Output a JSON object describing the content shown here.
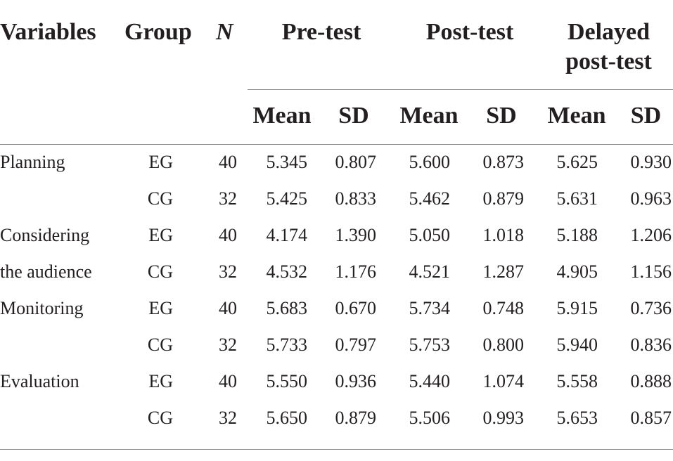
{
  "headers": {
    "variables": "Variables",
    "group": "Group",
    "n": "N",
    "pre_test": "Pre-test",
    "post_test": "Post-test",
    "delayed_line1": "Delayed",
    "delayed_line2": "post-test",
    "mean": "Mean",
    "sd": "SD"
  },
  "rows": [
    {
      "variable": "Planning",
      "group": "EG",
      "n": "40",
      "pre_mean": "5.345",
      "pre_sd": "0.807",
      "post_mean": "5.600",
      "post_sd": "0.873",
      "del_mean": "5.625",
      "del_sd": "0.930"
    },
    {
      "variable": "",
      "group": "CG",
      "n": "32",
      "pre_mean": "5.425",
      "pre_sd": "0.833",
      "post_mean": "5.462",
      "post_sd": "0.879",
      "del_mean": "5.631",
      "del_sd": "0.963"
    },
    {
      "variable": "Considering",
      "group": "EG",
      "n": "40",
      "pre_mean": "4.174",
      "pre_sd": "1.390",
      "post_mean": "5.050",
      "post_sd": "1.018",
      "del_mean": "5.188",
      "del_sd": "1.206"
    },
    {
      "variable": "the audience",
      "group": "CG",
      "n": "32",
      "pre_mean": "4.532",
      "pre_sd": "1.176",
      "post_mean": "4.521",
      "post_sd": "1.287",
      "del_mean": "4.905",
      "del_sd": "1.156"
    },
    {
      "variable": "Monitoring",
      "group": "EG",
      "n": "40",
      "pre_mean": "5.683",
      "pre_sd": "0.670",
      "post_mean": "5.734",
      "post_sd": "0.748",
      "del_mean": "5.915",
      "del_sd": "0.736"
    },
    {
      "variable": "",
      "group": "CG",
      "n": "32",
      "pre_mean": "5.733",
      "pre_sd": "0.797",
      "post_mean": "5.753",
      "post_sd": "0.800",
      "del_mean": "5.940",
      "del_sd": "0.836"
    },
    {
      "variable": "Evaluation",
      "group": "EG",
      "n": "40",
      "pre_mean": "5.550",
      "pre_sd": "0.936",
      "post_mean": "5.440",
      "post_sd": "1.074",
      "del_mean": "5.558",
      "del_sd": "0.888"
    },
    {
      "variable": "",
      "group": "CG",
      "n": "32",
      "pre_mean": "5.650",
      "pre_sd": "0.879",
      "post_mean": "5.506",
      "post_sd": "0.993",
      "del_mean": "5.653",
      "del_sd": "0.857"
    }
  ]
}
